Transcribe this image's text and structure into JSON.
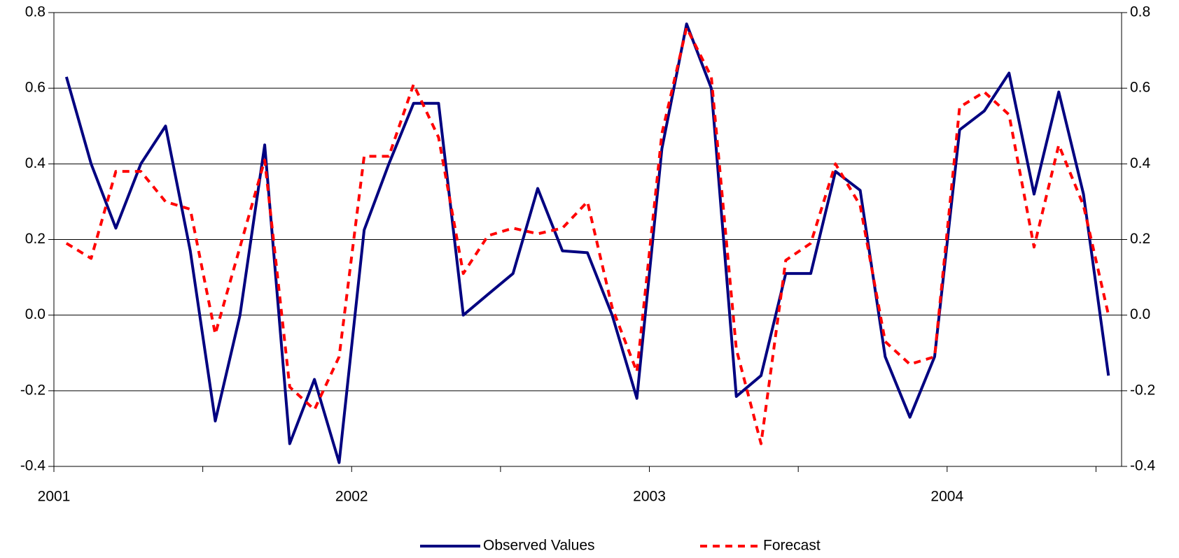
{
  "chart_data": {
    "type": "line",
    "x": [
      2001.042,
      2001.125,
      2001.208,
      2001.292,
      2001.375,
      2001.458,
      2001.542,
      2001.625,
      2001.708,
      2001.792,
      2001.875,
      2001.958,
      2002.042,
      2002.125,
      2002.208,
      2002.292,
      2002.375,
      2002.458,
      2002.542,
      2002.625,
      2002.708,
      2002.792,
      2002.875,
      2002.958,
      2003.042,
      2003.125,
      2003.208,
      2003.292,
      2003.375,
      2003.458,
      2003.542,
      2003.625,
      2003.708,
      2003.792,
      2003.875,
      2003.958,
      2004.042,
      2004.125,
      2004.208,
      2004.292,
      2004.375,
      2004.458,
      2004.542
    ],
    "series": [
      {
        "name": "Observed Values",
        "color": "#000080",
        "dash": false,
        "values": [
          0.63,
          0.4,
          0.23,
          0.4,
          0.5,
          0.17,
          -0.28,
          0.0,
          0.45,
          -0.34,
          -0.17,
          -0.39,
          0.225,
          0.4,
          0.56,
          0.56,
          0.0,
          0.055,
          0.11,
          0.335,
          0.17,
          0.165,
          0.0,
          -0.22,
          0.44,
          0.77,
          0.6,
          -0.215,
          -0.16,
          0.11,
          0.11,
          0.38,
          0.33,
          -0.11,
          -0.27,
          -0.11,
          0.49,
          0.54,
          0.64,
          0.32,
          0.59,
          0.32,
          -0.16
        ]
      },
      {
        "name": "Forecast",
        "color": "#ff0000",
        "dash": true,
        "values": [
          0.19,
          0.15,
          0.38,
          0.38,
          0.3,
          0.28,
          -0.05,
          0.18,
          0.41,
          -0.19,
          -0.25,
          -0.11,
          0.42,
          0.42,
          0.61,
          0.47,
          0.11,
          0.21,
          0.23,
          0.215,
          0.23,
          0.3,
          0.02,
          -0.15,
          0.48,
          0.76,
          0.63,
          -0.09,
          -0.34,
          0.145,
          0.19,
          0.4,
          0.29,
          -0.07,
          -0.13,
          -0.11,
          0.55,
          0.59,
          0.53,
          0.18,
          0.45,
          0.29,
          0.0
        ]
      }
    ],
    "xlim": [
      2001,
      2004.586
    ],
    "xticks": [
      2001,
      2002,
      2003,
      2004
    ],
    "xminorticks": [
      2001.5,
      2002.5,
      2003.5,
      2004.5
    ],
    "ylim": [
      -0.4,
      0.8
    ],
    "yticks": [
      0.8,
      0.6,
      0.4,
      0.2,
      {
        "value": 0,
        "label": "0.0"
      },
      -0.2,
      -0.4
    ],
    "y2lim": [
      -0.4,
      0.8
    ],
    "y2ticks": [
      0.8,
      0.6,
      0.4,
      0.2,
      {
        "value": 0,
        "label": "0.0"
      },
      -0.2,
      -0.4
    ],
    "grid": true,
    "legend": "bottom"
  }
}
